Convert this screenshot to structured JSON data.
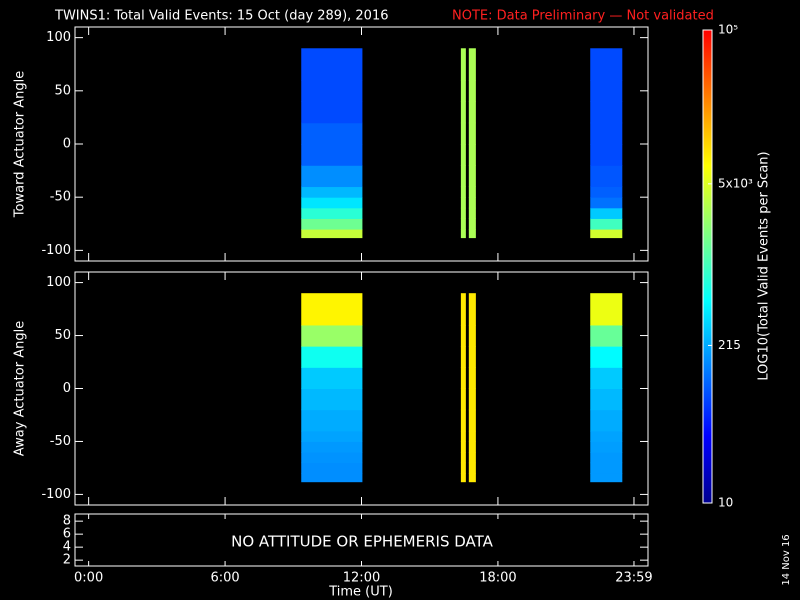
{
  "title": "TWINS1: Total Valid Events: 15 Oct (day 289), 2016",
  "note": "NOTE: Data Preliminary — Not validated",
  "date_stamp": "14 Nov 16",
  "x_axis": {
    "xlabel": "Time (UT)",
    "xlim": [
      -0.6,
      24.6
    ],
    "xticks": [
      {
        "value": 0,
        "label": "0:00"
      },
      {
        "value": 6,
        "label": "6:00"
      },
      {
        "value": 12,
        "label": "12:00"
      },
      {
        "value": 18,
        "label": "18:00"
      },
      {
        "value": 23.983,
        "label": "23:59"
      }
    ]
  },
  "colorbar": {
    "label": "LOG10(Total Valid Events per Scan)",
    "log": true,
    "lim": [
      10,
      100000
    ],
    "ticks": [
      10,
      215,
      {
        "value": 5000,
        "label": "5x10³"
      },
      {
        "value": 100000,
        "label": "10⁵"
      }
    ],
    "colormap": [
      "#00008f",
      "#0000ff",
      "#0080ff",
      "#00ffff",
      "#80ff80",
      "#ffff00",
      "#ff8000",
      "#ff0000"
    ]
  },
  "chart_data": [
    {
      "type": "heatmap",
      "ylabel": "Toward Actuator Angle",
      "ylim": [
        -110,
        110
      ],
      "yticks": [
        -100,
        -50,
        0,
        50,
        100
      ],
      "angle_edges": [
        -88,
        -80,
        -70,
        -60,
        -50,
        -40,
        -20,
        0,
        20,
        40,
        60,
        90
      ],
      "blocks": [
        {
          "t": [
            9.35,
            12.04
          ],
          "values": [
            4000,
            1600,
            800,
            400,
            250,
            160,
            100,
            100,
            80,
            80,
            80
          ]
        },
        {
          "t": [
            16.37,
            16.59
          ],
          "values": [
            3000,
            3000,
            3000,
            3000,
            3000,
            3000,
            3000,
            3000,
            3000,
            3000,
            3000
          ]
        },
        {
          "t": [
            16.72,
            17.03
          ],
          "values": [
            3000,
            3000,
            3000,
            3000,
            3000,
            3000,
            3000,
            3000,
            3000,
            3000,
            3000
          ]
        },
        {
          "t": [
            22.06,
            23.47
          ],
          "values": [
            4500,
            1000,
            300,
            120,
            100,
            90,
            80,
            80,
            80,
            80,
            80
          ]
        }
      ]
    },
    {
      "type": "heatmap",
      "ylabel": "Away Actuator Angle",
      "ylim": [
        -110,
        110
      ],
      "yticks": [
        -100,
        -50,
        0,
        50,
        100
      ],
      "angle_edges": [
        -88,
        -80,
        -70,
        -60,
        -50,
        -40,
        -20,
        0,
        20,
        40,
        60,
        90
      ],
      "blocks": [
        {
          "t": [
            9.35,
            12.04
          ],
          "values": [
            160,
            160,
            170,
            180,
            200,
            220,
            250,
            300,
            600,
            2500,
            8000
          ]
        },
        {
          "t": [
            16.37,
            16.59
          ],
          "values": [
            9000,
            9000,
            9000,
            9000,
            9000,
            9000,
            9000,
            9000,
            9000,
            9000,
            9000
          ]
        },
        {
          "t": [
            16.72,
            17.03
          ],
          "values": [
            9000,
            9000,
            9000,
            9000,
            9000,
            9000,
            9000,
            9000,
            9000,
            9000,
            9000
          ]
        },
        {
          "t": [
            22.06,
            23.47
          ],
          "values": [
            180,
            180,
            180,
            190,
            200,
            220,
            250,
            300,
            500,
            1500,
            6000
          ]
        }
      ]
    },
    {
      "type": "empty",
      "ylim": [
        1.1,
        9.1
      ],
      "yticks": [
        2,
        4,
        6,
        8
      ],
      "message": "NO ATTITUDE OR EPHEMERIS DATA"
    }
  ]
}
